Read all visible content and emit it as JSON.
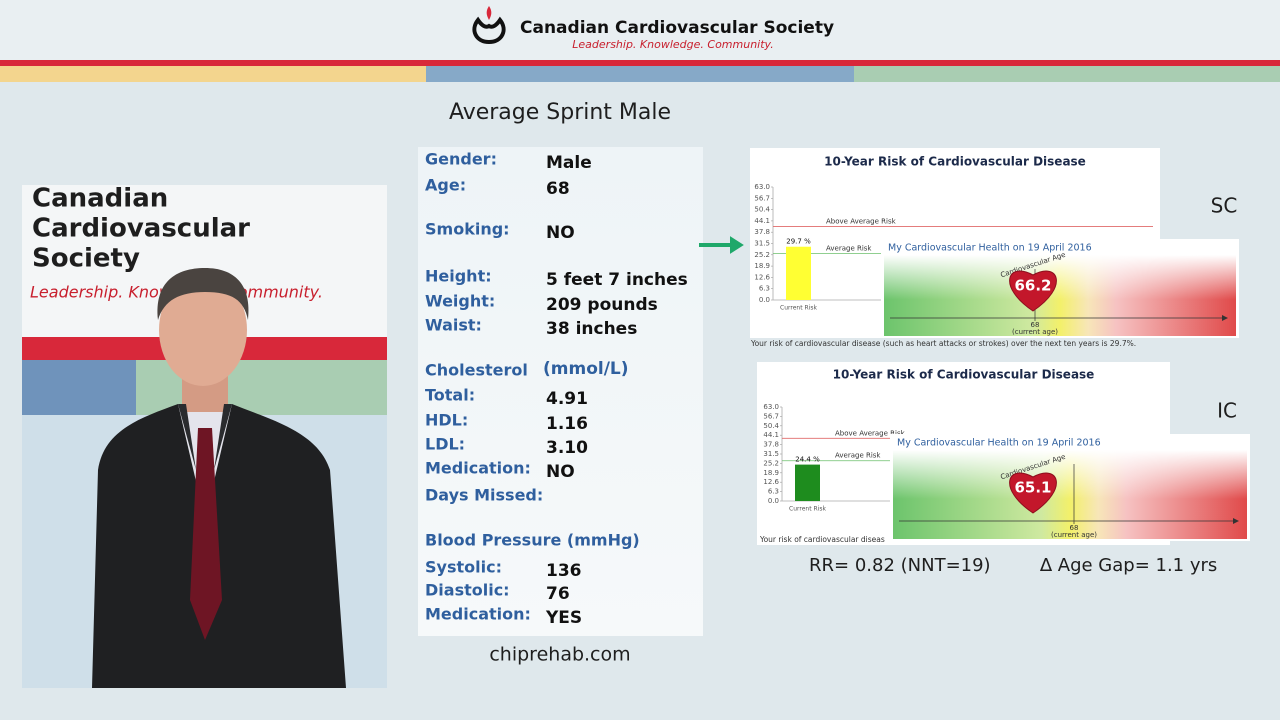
{
  "header": {
    "title": "Canadian Cardiovascular Society",
    "tagline": "Leadership. Knowledge. Community."
  },
  "backdrop": {
    "lines": [
      "Canadian",
      "Cardiovascular",
      "Society"
    ],
    "tagline": "Leadership. Knowledge. Community."
  },
  "slide_title": "Average Sprint Male",
  "profile": {
    "rows": [
      {
        "label": "Gender:",
        "value": "Male"
      },
      {
        "label": "Age:",
        "value": "68"
      },
      {
        "label": "Smoking:",
        "value": "NO"
      },
      {
        "label": "Height:",
        "value": "5 feet 7 inches"
      },
      {
        "label": "Weight:",
        "value": "209 pounds"
      },
      {
        "label": "Waist:",
        "value": "38 inches"
      },
      {
        "label": "Cholesterol",
        "value": "(mmol/L)"
      },
      {
        "label": "Total:",
        "value": "4.91"
      },
      {
        "label": "HDL:",
        "value": "1.16"
      },
      {
        "label": "LDL:",
        "value": "3.10"
      },
      {
        "label": "Medication:",
        "value": "NO"
      },
      {
        "label": "Days Missed:"
      },
      {
        "label": "Blood Pressure (mmHg)"
      },
      {
        "label": "Systolic:",
        "value": "136"
      },
      {
        "label": "Diastolic:",
        "value": "76"
      },
      {
        "label": "Medication:",
        "value": "YES"
      }
    ]
  },
  "site": "chiprehab.com",
  "tags": [
    "SC",
    "IC"
  ],
  "results": {
    "rr": "RR= 0.82 (NNT=19)",
    "age_gap": "∆ Age Gap= 1.1 yrs"
  },
  "chart_data": [
    {
      "type": "bar",
      "title": "10-Year Risk of Cardiovascular Disease",
      "categories": [
        "Current Risk"
      ],
      "values": [
        29.7
      ],
      "value_labels": [
        "29.7 %"
      ],
      "color": "#ffff33",
      "ylim": [
        0,
        63
      ],
      "yticks": [
        {
          "value": 0,
          "label": "0.0"
        },
        6.3,
        12.6,
        18.9,
        25.2,
        31.5,
        37.8,
        44.1,
        50.4,
        56.7,
        {
          "value": 63,
          "label": "63.0"
        }
      ],
      "reference_lines": [
        {
          "label": "Above Average Risk",
          "value": 41,
          "color": "#e06a6a"
        },
        {
          "label": "Average Risk",
          "value": 26,
          "color": "#6cbf6c"
        }
      ],
      "caption": "Your risk of cardiovascular disease (such as heart attacks or strokes) over the next ten years is 29.7%.",
      "inset": {
        "title": "My Cardiovascular Health on 19 April 2016",
        "arc_label": "Cardiovascular Age",
        "heart_age": 66.2,
        "current_age": 68,
        "current_age_label": "(current age)"
      }
    },
    {
      "type": "bar",
      "title": "10-Year Risk of Cardiovascular Disease",
      "categories": [
        "Current Risk"
      ],
      "values": [
        24.4
      ],
      "value_labels": [
        "24.4 %"
      ],
      "color": "#1e8c1e",
      "ylim": [
        0,
        63
      ],
      "yticks": [
        {
          "value": 0,
          "label": "0.0"
        },
        6.3,
        12.6,
        18.9,
        25.2,
        31.5,
        37.8,
        44.1,
        50.4,
        56.7,
        {
          "value": 63,
          "label": "63.0"
        }
      ],
      "reference_lines": [
        {
          "label": "Above Average Risk",
          "value": 42,
          "color": "#e06a6a"
        },
        {
          "label": "Average Risk",
          "value": 27,
          "color": "#6cbf6c"
        }
      ],
      "caption": "Your risk of cardiovascular diseas",
      "inset": {
        "title": "My Cardiovascular Health on 19 April 2016",
        "arc_label": "Cardiovascular Age",
        "heart_age": 65.1,
        "current_age": 68,
        "current_age_label": "(current age)"
      }
    }
  ]
}
